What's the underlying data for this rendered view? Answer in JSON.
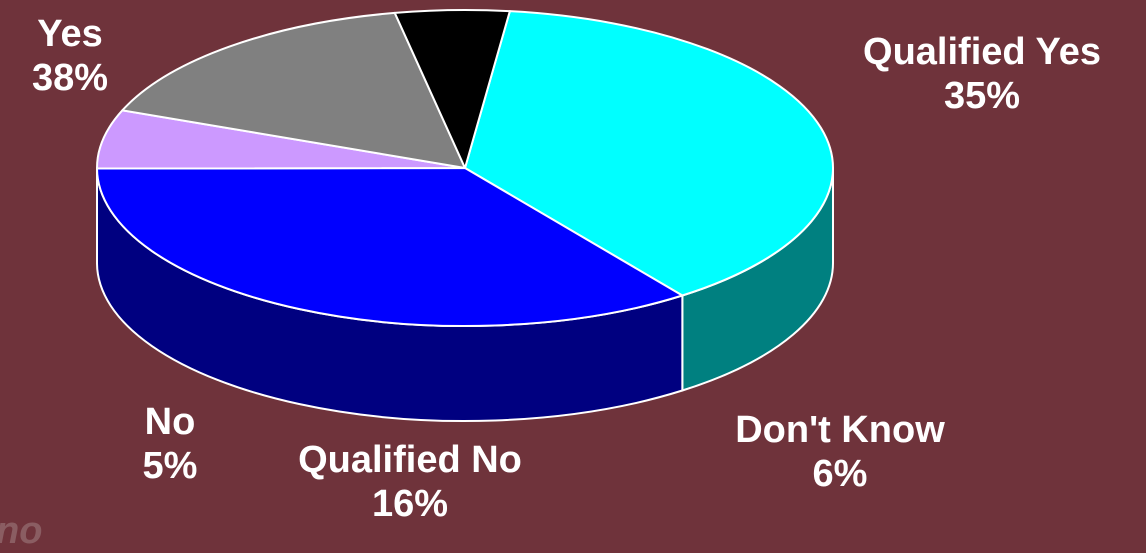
{
  "chart_data": {
    "type": "pie",
    "slices": [
      {
        "label": "Yes",
        "value": 38,
        "percent_text": "38%",
        "color": "#00ffff",
        "side_color": "#008080"
      },
      {
        "label": "Qualified Yes",
        "value": 35,
        "percent_text": "35%",
        "color": "#0000ff",
        "side_color": "#000080"
      },
      {
        "label": "Don't Know",
        "value": 6,
        "percent_text": "6%",
        "color": "#cc99ff",
        "side_color": "#664c80"
      },
      {
        "label": "Qualified No",
        "value": 16,
        "percent_text": "16%",
        "color": "#808080",
        "side_color": "#404040"
      },
      {
        "label": "No",
        "value": 5,
        "percent_text": "5%",
        "color": "#000000",
        "side_color": "#000000"
      }
    ]
  },
  "background_color": "#6f333b",
  "corner_text": "no"
}
